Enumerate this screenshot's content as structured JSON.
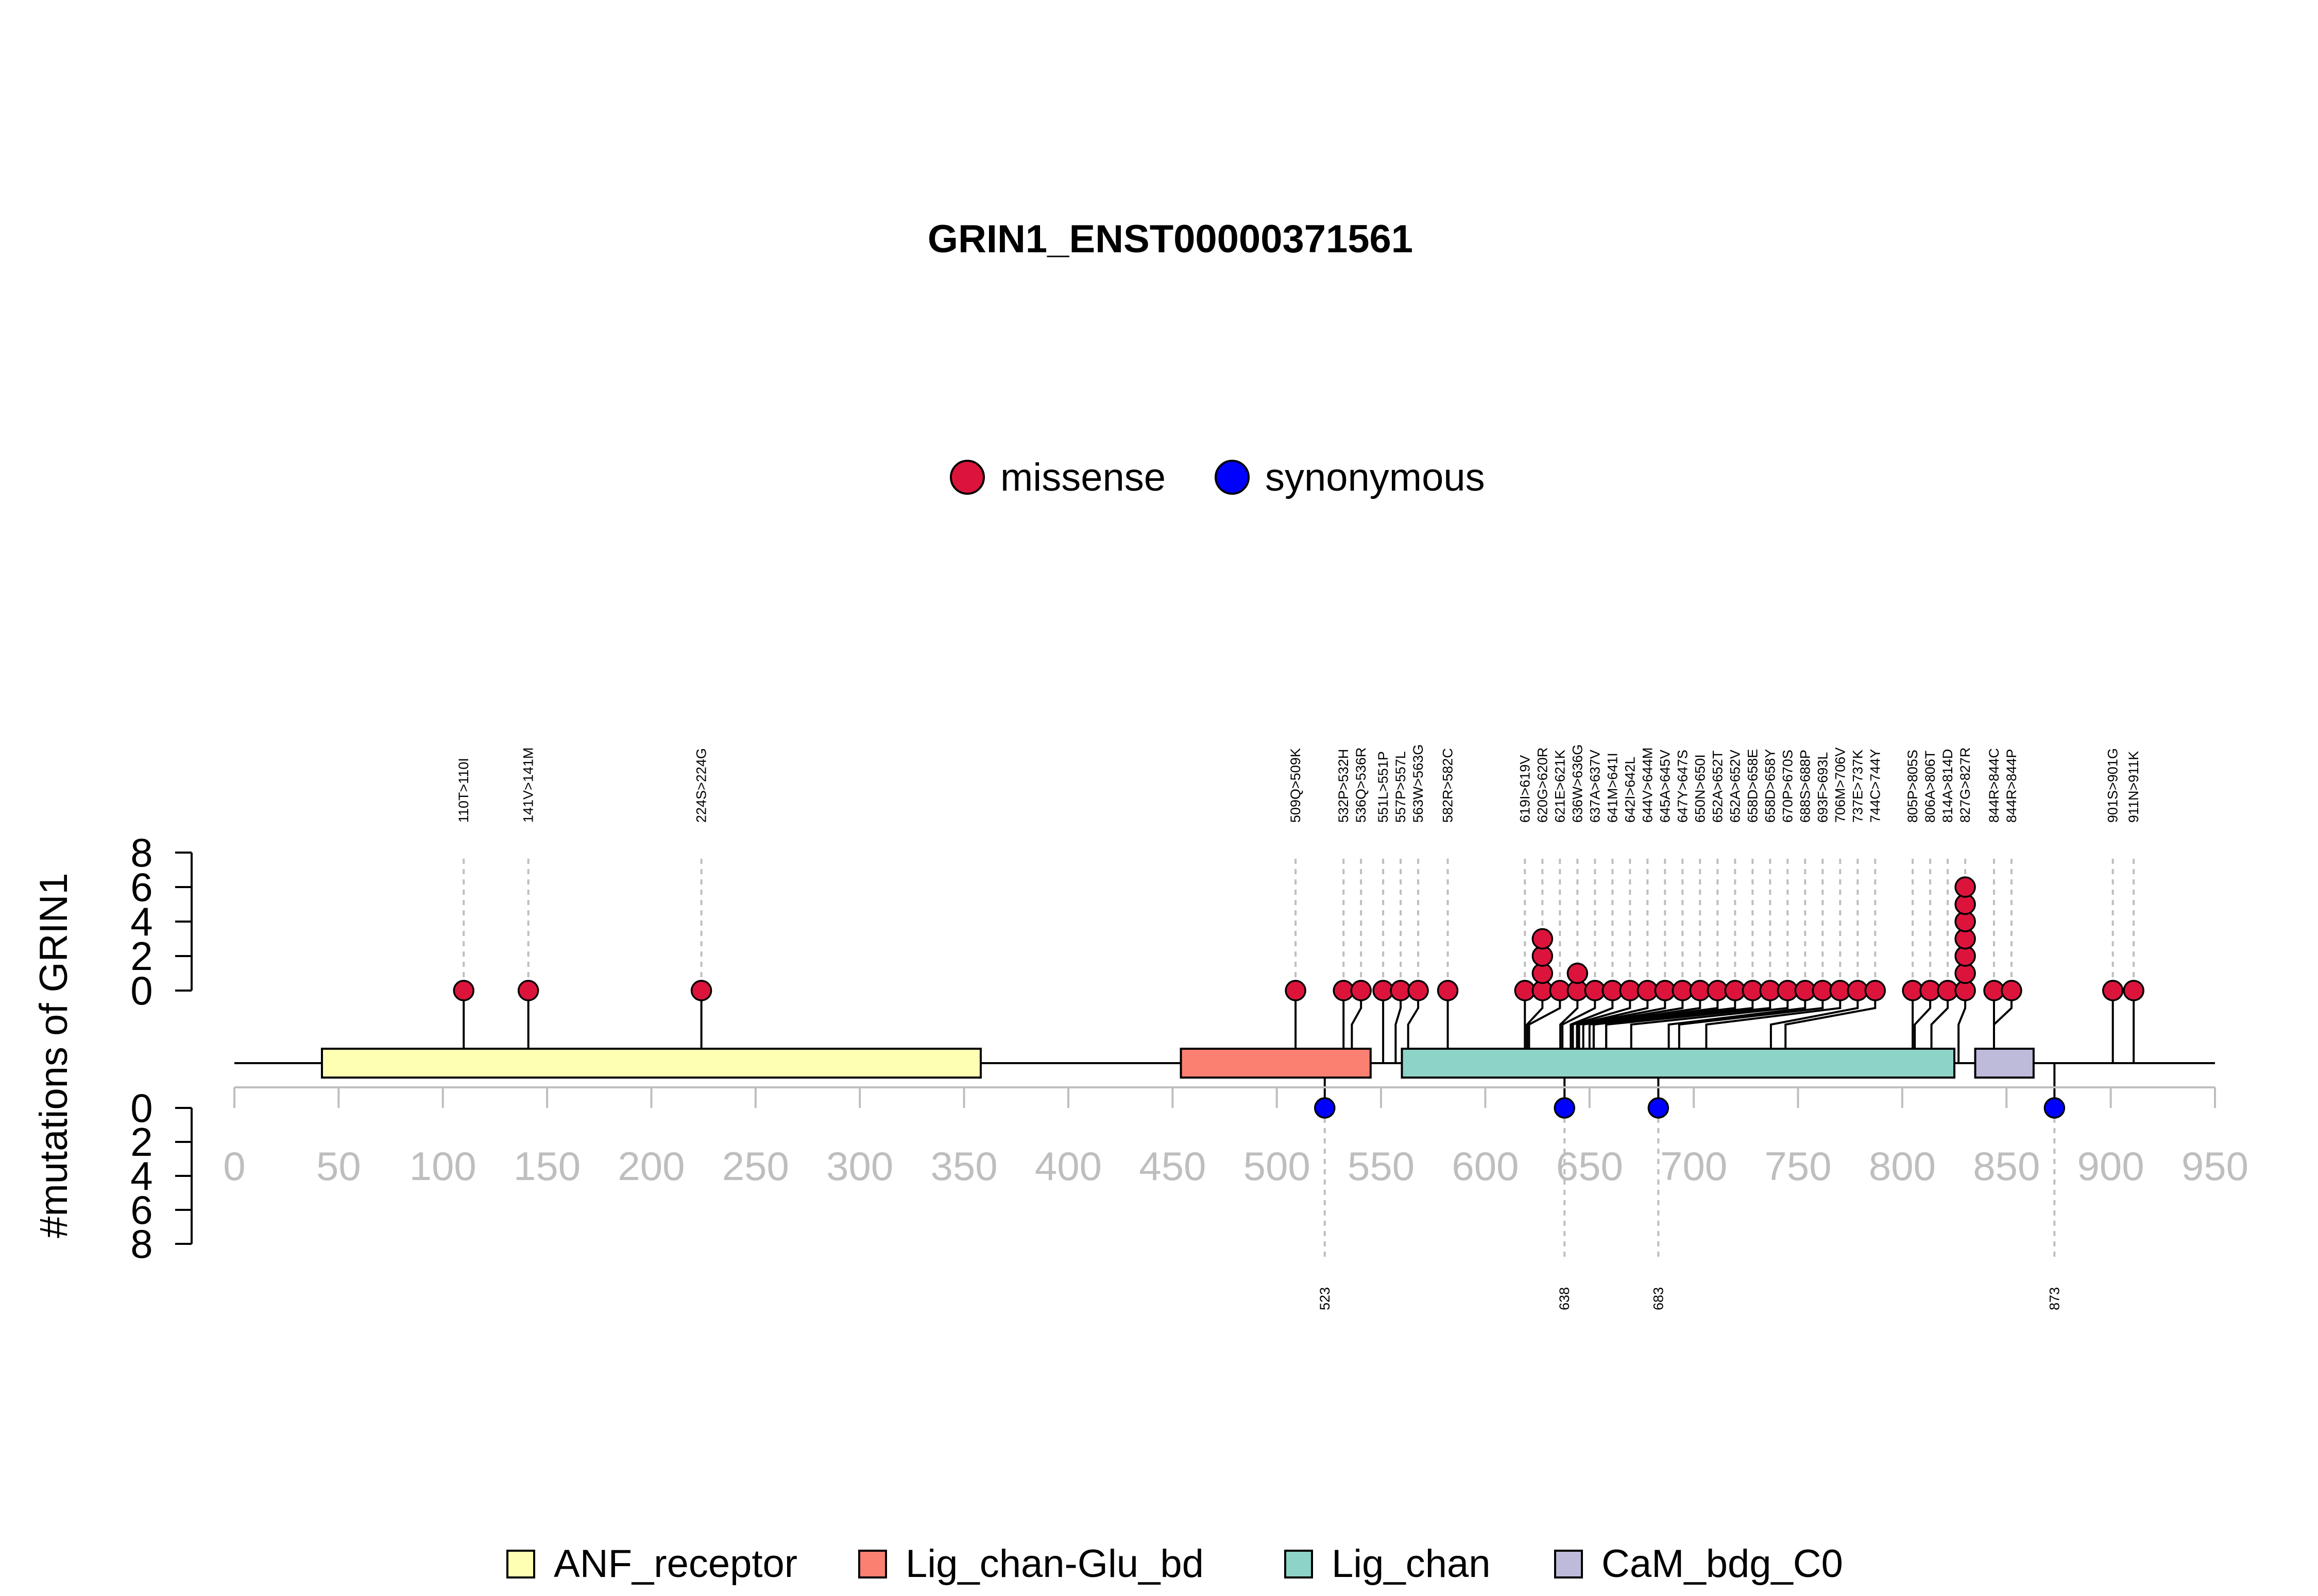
{
  "chart_data": {
    "type": "lollipop",
    "title": "GRIN1_ENST00000371561",
    "ylabel": "#mutations of GRIN1",
    "xlim": [
      0,
      950
    ],
    "x_ticks": [
      "0",
      "50",
      "100",
      "150",
      "200",
      "250",
      "300",
      "350",
      "400",
      "450",
      "500",
      "550",
      "600",
      "650",
      "700",
      "750",
      "800",
      "850",
      "900",
      "950"
    ],
    "y_ticks": [
      "0",
      "2",
      "4",
      "6",
      "8"
    ],
    "legend_mutation": [
      {
        "label": "missense",
        "color": "#DC143C"
      },
      {
        "label": "synonymous",
        "color": "#0000FF"
      }
    ],
    "domains": [
      {
        "name": "ANF_receptor",
        "start": 42,
        "end": 358,
        "color": "#FFFFB3"
      },
      {
        "name": "Lig_chan-Glu_bd",
        "start": 454,
        "end": 545,
        "color": "#FB8072"
      },
      {
        "name": "Lig_chan",
        "start": 560,
        "end": 825,
        "color": "#8DD3C7"
      },
      {
        "name": "CaM_bdg_C0",
        "start": 835,
        "end": 863,
        "color": "#BEBADA"
      }
    ],
    "missense": [
      {
        "label": "110T>110I",
        "pos": 110,
        "count": 1
      },
      {
        "label": "141V>141M",
        "pos": 141,
        "count": 1
      },
      {
        "label": "224S>224G",
        "pos": 224,
        "count": 1
      },
      {
        "label": "509Q>509K",
        "pos": 509,
        "count": 1
      },
      {
        "label": "532P>532H",
        "pos": 532,
        "count": 1
      },
      {
        "label": "536Q>536R",
        "pos": 536,
        "count": 1
      },
      {
        "label": "551L>551P",
        "pos": 551,
        "count": 1
      },
      {
        "label": "557P>557L",
        "pos": 557,
        "count": 1
      },
      {
        "label": "563W>563G",
        "pos": 563,
        "count": 1
      },
      {
        "label": "582R>582C",
        "pos": 582,
        "count": 1
      },
      {
        "label": "619I>619V",
        "pos": 619,
        "count": 1
      },
      {
        "label": "620G>620R",
        "pos": 620,
        "count": 4
      },
      {
        "label": "621E>621K",
        "pos": 621,
        "count": 1
      },
      {
        "label": "636W>636G",
        "pos": 636,
        "count": 2
      },
      {
        "label": "637A>637V",
        "pos": 637,
        "count": 1
      },
      {
        "label": "641M>641I",
        "pos": 641,
        "count": 1
      },
      {
        "label": "642I>642L",
        "pos": 642,
        "count": 1
      },
      {
        "label": "644V>644M",
        "pos": 644,
        "count": 1
      },
      {
        "label": "645A>645V",
        "pos": 645,
        "count": 1
      },
      {
        "label": "647Y>647S",
        "pos": 647,
        "count": 1
      },
      {
        "label": "650N>650I",
        "pos": 650,
        "count": 1
      },
      {
        "label": "652A>652T",
        "pos": 652,
        "count": 1
      },
      {
        "label": "652A>652V",
        "pos": 652,
        "count": 1
      },
      {
        "label": "658D>658E",
        "pos": 658,
        "count": 1
      },
      {
        "label": "658D>658Y",
        "pos": 658,
        "count": 1
      },
      {
        "label": "670P>670S",
        "pos": 670,
        "count": 1
      },
      {
        "label": "688S>688P",
        "pos": 688,
        "count": 1
      },
      {
        "label": "693F>693L",
        "pos": 693,
        "count": 1
      },
      {
        "label": "706M>706V",
        "pos": 706,
        "count": 1
      },
      {
        "label": "737E>737K",
        "pos": 737,
        "count": 1
      },
      {
        "label": "744C>744Y",
        "pos": 744,
        "count": 1
      },
      {
        "label": "805P>805S",
        "pos": 805,
        "count": 1
      },
      {
        "label": "806A>806T",
        "pos": 806,
        "count": 1
      },
      {
        "label": "814A>814D",
        "pos": 814,
        "count": 1
      },
      {
        "label": "827G>827R",
        "pos": 827,
        "count": 7
      },
      {
        "label": "844R>844C",
        "pos": 844,
        "count": 1
      },
      {
        "label": "844R>844P",
        "pos": 844,
        "count": 1
      },
      {
        "label": "901S>901G",
        "pos": 901,
        "count": 1
      },
      {
        "label": "911N>911K",
        "pos": 911,
        "count": 1
      }
    ],
    "synonymous": [
      {
        "label": "523",
        "pos": 523,
        "count": 1
      },
      {
        "label": "638",
        "pos": 638,
        "count": 1
      },
      {
        "label": "683",
        "pos": 683,
        "count": 1
      },
      {
        "label": "873",
        "pos": 873,
        "count": 1
      }
    ]
  }
}
